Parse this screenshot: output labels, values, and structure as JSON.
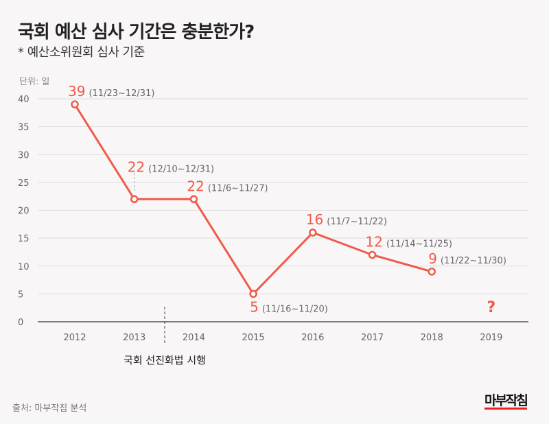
{
  "title": "국회 예산 심사 기간은 충분한가?",
  "subtitle": "* 예산소위원회 심사 기준",
  "source": "출처: 마부작침 분석",
  "logo": "마부작침",
  "chart_data": {
    "type": "line",
    "unit_label": "단위: 일",
    "categories": [
      "2012",
      "2013",
      "2014",
      "2015",
      "2016",
      "2017",
      "2018",
      "2019"
    ],
    "values": [
      39,
      22,
      22,
      5,
      16,
      12,
      9,
      null
    ],
    "period_labels": [
      "(11/23~12/31)",
      "(12/10~12/31)",
      "(11/6~11/27)",
      "(11/16~11/20)",
      "(11/7~11/22)",
      "(11/14~11/25)",
      "(11/22~11/30)",
      ""
    ],
    "unknown_marker": "?",
    "ylim": [
      0,
      40
    ],
    "yticks": [
      0,
      5,
      10,
      15,
      20,
      25,
      30,
      35,
      40
    ],
    "grid": true,
    "annotation": "국회 선진화법 시행",
    "line_color": "#f05a4a",
    "text_color_accent": "#f05a4a"
  }
}
